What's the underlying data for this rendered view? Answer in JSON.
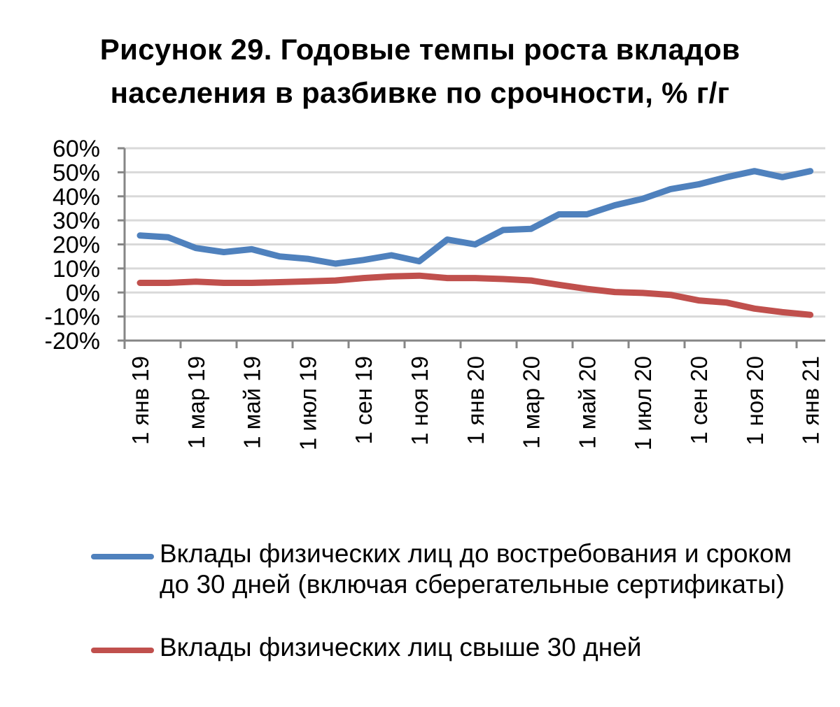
{
  "title": {
    "line1": "Рисунок 29. Годовые темпы роста вкладов",
    "line2": "населения в разбивке по срочности, % г/г"
  },
  "legend": [
    {
      "label_line1": "Вклады физических лиц до востребования и сроком",
      "label_line2": "до 30 дней (включая сберегательные сертификаты)",
      "color": "#4f81bd"
    },
    {
      "label_line1": "Вклады физических лиц свыше 30 дней",
      "label_line2": "",
      "color": "#c0504d"
    }
  ],
  "chart_data": {
    "type": "line",
    "title": "Рисунок 29. Годовые темпы роста вкладов населения в разбивке по срочности, % г/г",
    "xlabel": "",
    "ylabel": "",
    "ylim": [
      -20,
      60
    ],
    "yticks": [
      60,
      50,
      40,
      30,
      20,
      10,
      0,
      -10,
      -20
    ],
    "ytick_labels": [
      "60%",
      "50%",
      "40%",
      "30%",
      "20%",
      "10%",
      "0%",
      "-10%",
      "-20%"
    ],
    "grid": true,
    "legend_position": "bottom",
    "x": [
      "янв 19",
      "фев 19",
      "мар 19",
      "апр 19",
      "май 19",
      "июн 19",
      "июл 19",
      "авг 19",
      "сен 19",
      "окт 19",
      "ноя 19",
      "дек 19",
      "янв 20",
      "фев 20",
      "мар 20",
      "апр 20",
      "май 20",
      "июн 20",
      "июл 20",
      "авг 20",
      "сен 20",
      "окт 20",
      "ноя 20",
      "дек 20",
      "янв 21"
    ],
    "xtick_labels": [
      "1 янв 19",
      "1 мар 19",
      "1 май 19",
      "1 июл 19",
      "1 сен 19",
      "1 ноя 19",
      "1 янв 20",
      "1 мар 20",
      "1 май 20",
      "1 июл 20",
      "1 сен 20",
      "1 ноя 20",
      "1 янв 21"
    ],
    "series": [
      {
        "name": "Вклады физических лиц до востребования и сроком до 30 дней (включая сберегательные сертификаты)",
        "color": "#4f81bd",
        "values": [
          23.7,
          23.0,
          18.5,
          16.8,
          18.0,
          15.0,
          14.0,
          12.0,
          13.5,
          15.5,
          13.0,
          22.0,
          20.0,
          26.0,
          26.5,
          32.5,
          32.5,
          36.3,
          39.0,
          43.0,
          45.0,
          48.0,
          50.5,
          48.0,
          50.5
        ]
      },
      {
        "name": "Вклады физических лиц свыше 30 дней",
        "color": "#c0504d",
        "values": [
          4.0,
          4.0,
          4.5,
          4.0,
          4.0,
          4.3,
          4.6,
          5.0,
          6.0,
          6.7,
          7.0,
          6.0,
          6.0,
          5.6,
          5.0,
          3.2,
          1.5,
          0.2,
          -0.2,
          -1.0,
          -3.3,
          -4.2,
          -6.7,
          -8.2,
          -9.3
        ]
      }
    ]
  }
}
